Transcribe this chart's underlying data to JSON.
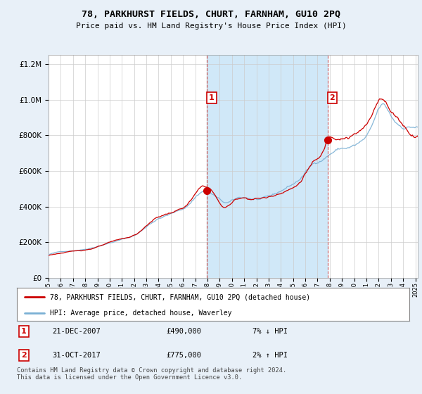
{
  "title": "78, PARKHURST FIELDS, CHURT, FARNHAM, GU10 2PQ",
  "subtitle": "Price paid vs. HM Land Registry's House Price Index (HPI)",
  "bg_color": "#e8f0f8",
  "plot_bg_color": "#ffffff",
  "legend_label_red": "78, PARKHURST FIELDS, CHURT, FARNHAM, GU10 2PQ (detached house)",
  "legend_label_blue": "HPI: Average price, detached house, Waverley",
  "annotation1_date": "21-DEC-2007",
  "annotation1_price": "£490,000",
  "annotation1_hpi": "7% ↓ HPI",
  "annotation2_date": "31-OCT-2017",
  "annotation2_price": "£775,000",
  "annotation2_hpi": "2% ↑ HPI",
  "footer": "Contains HM Land Registry data © Crown copyright and database right 2024.\nThis data is licensed under the Open Government Licence v3.0.",
  "red_color": "#cc0000",
  "blue_color": "#7ab0d4",
  "shade_color": "#d0e8f8",
  "vline_color": "#cc3333",
  "grid_color": "#cccccc",
  "vline1_year": 2007.97,
  "vline2_year": 2017.83,
  "ann1_price_y": 490000,
  "ann2_price_y": 775000,
  "ylim": [
    0,
    1250000
  ],
  "xlim_start": 1995.0,
  "xlim_end": 2025.2
}
